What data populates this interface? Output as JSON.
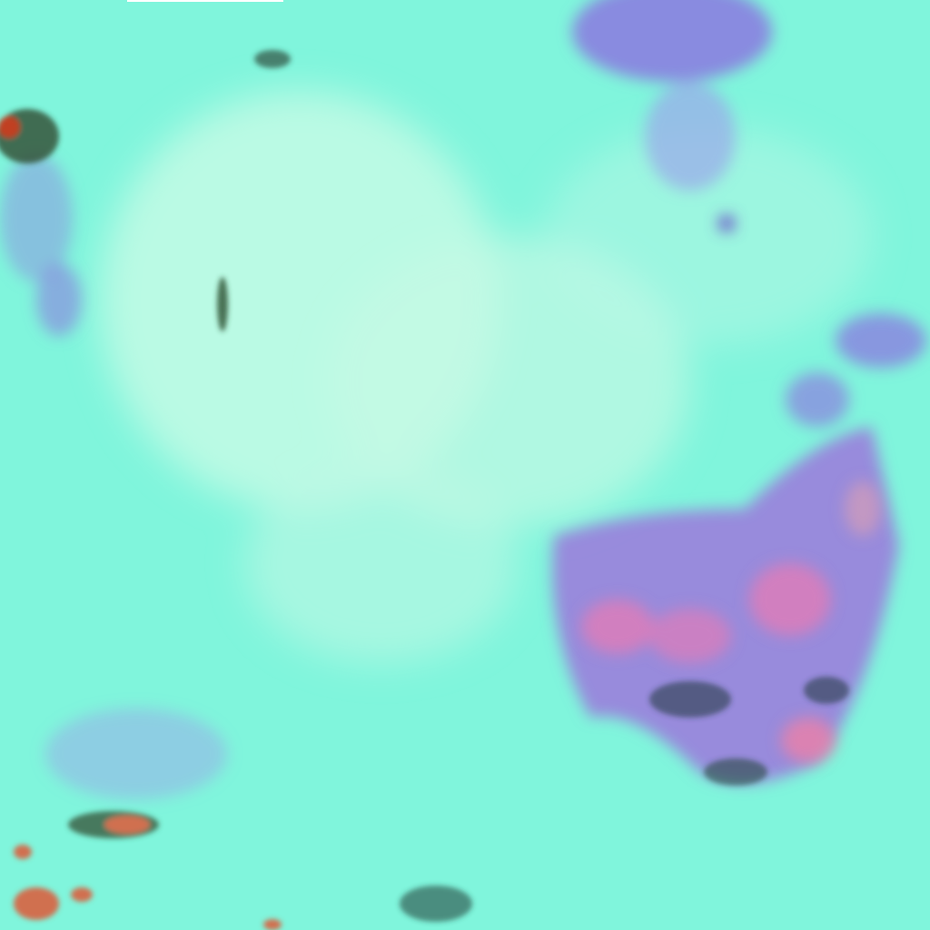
{
  "image": {
    "colors": {
      "base": "#80f5dc",
      "haze": "#c8fbe6",
      "purple": "#8a7fe0",
      "pink": "#e07cb8",
      "dark": "#2a3a4a",
      "green": "#3ca060",
      "orange": "#d07050"
    }
  }
}
